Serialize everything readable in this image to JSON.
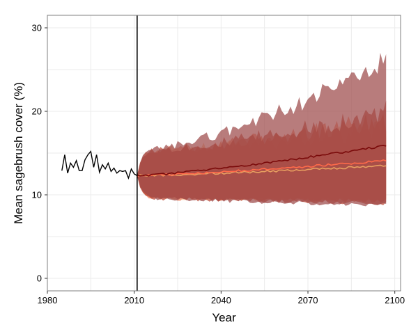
{
  "chart_data": {
    "type": "area",
    "title": "",
    "xlabel": "Year",
    "ylabel": "Mean sagebrush cover (%)",
    "xlim": [
      1980,
      2102
    ],
    "ylim": [
      -1.5,
      31.5
    ],
    "x_ticks": [
      1980,
      2010,
      2040,
      2070,
      2100
    ],
    "y_ticks": [
      0,
      10,
      20,
      30
    ],
    "grid": true,
    "legend": "none",
    "vertical_line_x": 2011,
    "colors": {
      "panel_border": "#7f7f7f",
      "grid": "#ebebeb",
      "observed": "#000000",
      "vline": "#000000"
    },
    "observed": {
      "x": [
        1985,
        1986,
        1987,
        1988,
        1989,
        1990,
        1991,
        1992,
        1993,
        1994,
        1995,
        1996,
        1997,
        1998,
        1999,
        2000,
        2001,
        2002,
        2003,
        2004,
        2005,
        2006,
        2007,
        2008,
        2009,
        2010,
        2011
      ],
      "y": [
        12.9,
        14.8,
        12.6,
        13.8,
        13.3,
        14.1,
        12.9,
        12.9,
        14.2,
        14.8,
        15.2,
        13.3,
        14.8,
        12.7,
        13.6,
        13.1,
        13.8,
        12.8,
        13.2,
        12.6,
        12.9,
        12.8,
        12.9,
        12.0,
        13.1,
        12.5,
        12.3
      ]
    },
    "projection_start": 2011,
    "projection_end": 2097,
    "series": [
      {
        "color": "#f4c49c",
        "fill_opacity": 0.85,
        "start": 12.3,
        "end_mean": 13.5,
        "lower_end": 9.4,
        "upper_end": 17.8,
        "noise_seed": 3
      },
      {
        "color": "#f08c6e",
        "fill_opacity": 0.8,
        "start": 12.3,
        "end_mean": 14.1,
        "lower_end": 9.3,
        "upper_end": 19.0,
        "noise_seed": 5
      },
      {
        "color": "#b8402e",
        "fill_opacity": 0.7,
        "start": 12.3,
        "end_mean": 14.0,
        "lower_end": 9.0,
        "upper_end": 20.0,
        "noise_seed": 7
      },
      {
        "color": "#9c4a4a",
        "fill_opacity": 0.72,
        "start": 12.3,
        "end_mean": 15.9,
        "lower_end": 8.8,
        "upper_end": 26.0,
        "noise_seed": 11
      }
    ],
    "mean_lines": [
      {
        "color": "#e8a060",
        "start": 12.3,
        "end": 13.5
      },
      {
        "color": "#ff6a4a",
        "start": 12.3,
        "end": 14.1
      },
      {
        "color": "#7a0a0a",
        "start": 12.3,
        "end": 15.9
      }
    ]
  }
}
